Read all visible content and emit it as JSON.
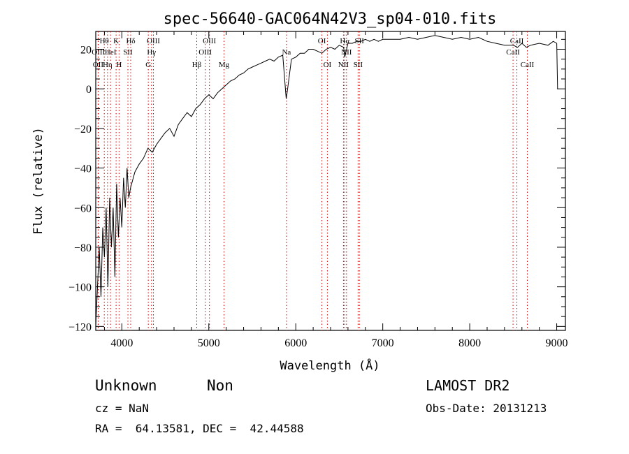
{
  "chart_data": {
    "type": "line",
    "title": "spec-56640-GAC064N42V3_sp04-010.fits",
    "xlabel": "Wavelength (Å)",
    "ylabel": "Flux (relative)",
    "xlim": [
      3700,
      9100
    ],
    "ylim": [
      -122,
      29
    ],
    "xticks": [
      4000,
      5000,
      6000,
      7000,
      8000,
      9000
    ],
    "yticks": [
      -120,
      -100,
      -80,
      -60,
      -40,
      -20,
      0,
      20
    ],
    "grid": false,
    "line_color": "#000000",
    "marker_color": "#cc0000",
    "series": [
      {
        "x": [
          3700,
          3720,
          3740,
          3760,
          3780,
          3800,
          3820,
          3840,
          3860,
          3880,
          3900,
          3920,
          3940,
          3960,
          3980,
          4000,
          4020,
          4040,
          4060,
          4080,
          4100,
          4150,
          4200,
          4250,
          4300,
          4350,
          4400,
          4450,
          4500,
          4550,
          4600,
          4650,
          4700,
          4750,
          4800,
          4850,
          4900,
          4950,
          5000,
          5050,
          5100,
          5150,
          5200,
          5250,
          5300,
          5350,
          5400,
          5450,
          5500,
          5550,
          5600,
          5650,
          5700,
          5750,
          5800,
          5850,
          5890,
          5900,
          5950,
          6000,
          6050,
          6100,
          6150,
          6200,
          6250,
          6300,
          6350,
          6400,
          6450,
          6500,
          6550,
          6563,
          6600,
          6650,
          6700,
          6750,
          6800,
          6850,
          6900,
          6950,
          7000,
          7100,
          7200,
          7300,
          7400,
          7500,
          7600,
          7700,
          7800,
          7900,
          8000,
          8100,
          8200,
          8300,
          8400,
          8500,
          8550,
          8600,
          8650,
          8700,
          8800,
          8900,
          8960,
          9000,
          9010
        ],
        "y": [
          -120,
          -100,
          -80,
          -105,
          -70,
          -85,
          -60,
          -100,
          -55,
          -80,
          -60,
          -95,
          -48,
          -75,
          -55,
          -70,
          -45,
          -60,
          -40,
          -55,
          -50,
          -42,
          -38,
          -35,
          -30,
          -32,
          -28,
          -25,
          -22,
          -20,
          -24,
          -18,
          -15,
          -12,
          -14,
          -10,
          -8,
          -5,
          -3,
          -5,
          -2,
          0,
          2,
          4,
          5,
          7,
          8,
          10,
          11,
          12,
          13,
          14,
          15,
          14,
          16,
          17,
          -5,
          -2,
          15,
          16,
          18,
          18,
          20,
          20,
          19,
          18,
          20,
          21,
          20,
          22,
          21,
          16,
          23,
          23,
          24,
          24,
          25,
          24,
          25,
          24,
          25,
          25,
          25,
          26,
          25,
          26,
          27,
          26,
          25,
          26,
          25,
          26,
          24,
          23,
          22,
          22,
          21,
          23,
          21,
          22,
          23,
          22,
          24,
          23,
          0
        ]
      }
    ],
    "lines": [
      {
        "name": "OII",
        "x": 3727,
        "row": 2
      },
      {
        "name": "OIII",
        "x": 3730,
        "row": 1
      },
      {
        "name": "Hθ",
        "x": 3798,
        "row": 0
      },
      {
        "name": "Hη",
        "x": 3835,
        "row": 2
      },
      {
        "name": "HeI",
        "x": 3870,
        "row": 1
      },
      {
        "name": "K",
        "x": 3934,
        "row": 0
      },
      {
        "name": "H",
        "x": 3968,
        "row": 2
      },
      {
        "name": "SII",
        "x": 4070,
        "row": 1
      },
      {
        "name": "Hδ",
        "x": 4102,
        "row": 0
      },
      {
        "name": "G",
        "x": 4304,
        "row": 2
      },
      {
        "name": "Hγ",
        "x": 4341,
        "row": 1
      },
      {
        "name": "OIII",
        "x": 4363,
        "row": 0
      },
      {
        "name": "Hβ",
        "x": 4861,
        "row": 2
      },
      {
        "name": "OIII",
        "x": 4959,
        "row": 1
      },
      {
        "name": "OIII",
        "x": 5007,
        "row": 0
      },
      {
        "name": "Mg",
        "x": 5175,
        "row": 2
      },
      {
        "name": "Na",
        "x": 5893,
        "row": 1
      },
      {
        "name": "OI",
        "x": 6300,
        "row": 0
      },
      {
        "name": "OI",
        "x": 6363,
        "row": 2
      },
      {
        "name": "NII",
        "x": 6548,
        "row": 2
      },
      {
        "name": "Hα",
        "x": 6563,
        "row": 0
      },
      {
        "name": "NII",
        "x": 6583,
        "row": 1
      },
      {
        "name": "SII",
        "x": 6716,
        "row": 2
      },
      {
        "name": "SII",
        "x": 6731,
        "row": 0
      },
      {
        "name": "CaII",
        "x": 8498,
        "row": 1
      },
      {
        "name": "CaII",
        "x": 8542,
        "row": 0
      },
      {
        "name": "CaII",
        "x": 8662,
        "row": 2
      }
    ]
  },
  "info": {
    "object_class": "Unknown",
    "subclass": "Non",
    "survey": "LAMOST DR2",
    "cz": "cz = NaN",
    "obs_date": "Obs-Date: 20131213",
    "coords": "RA =  64.13581, DEC =  42.44588"
  }
}
